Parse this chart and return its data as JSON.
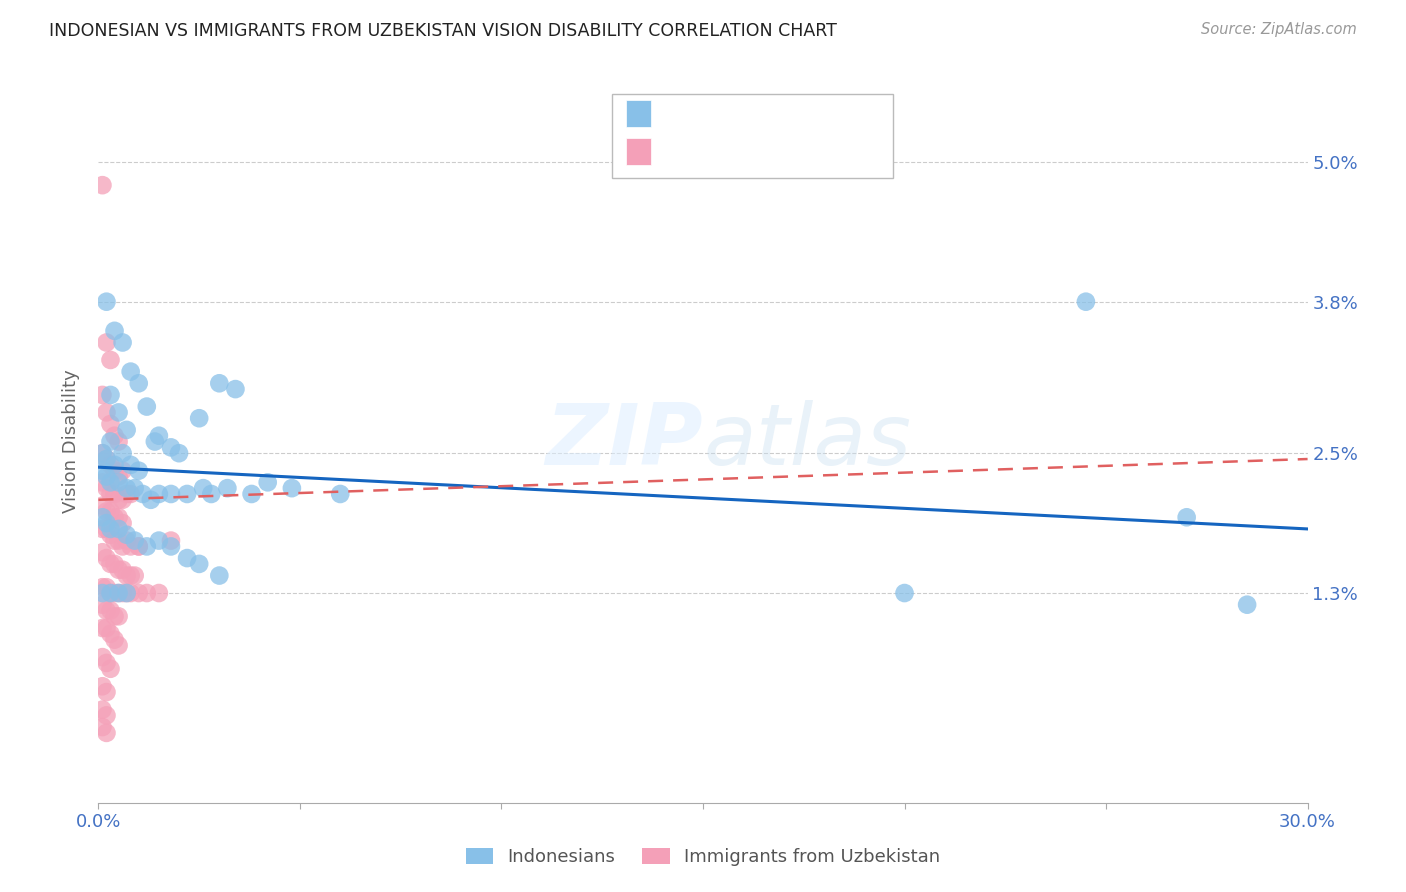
{
  "title": "INDONESIAN VS IMMIGRANTS FROM UZBEKISTAN VISION DISABILITY CORRELATION CHART",
  "source": "Source: ZipAtlas.com",
  "ylabel": "Vision Disability",
  "ytick_values": [
    0.013,
    0.025,
    0.038,
    0.05
  ],
  "ytick_labels": [
    "1.3%",
    "2.5%",
    "3.8%",
    "5.0%"
  ],
  "xmin": 0.0,
  "xmax": 0.3,
  "ymin": -0.005,
  "ymax": 0.057,
  "legend_label_blue": "Indonesians",
  "legend_label_pink": "Immigrants from Uzbekistan",
  "blue_color": "#88c0e8",
  "pink_color": "#f4a0b8",
  "line_blue_color": "#1565c0",
  "line_pink_color": "#e06060",
  "blue_line_x": [
    0.0,
    0.3
  ],
  "blue_line_y": [
    0.0238,
    0.0185
  ],
  "pink_line_x": [
    0.0,
    0.3
  ],
  "pink_line_y": [
    0.021,
    0.0245
  ],
  "grid_color": "#cccccc",
  "background_color": "#ffffff",
  "blue_scatter": [
    [
      0.002,
      0.038
    ],
    [
      0.004,
      0.0355
    ],
    [
      0.006,
      0.0345
    ],
    [
      0.008,
      0.032
    ],
    [
      0.003,
      0.03
    ],
    [
      0.005,
      0.0285
    ],
    [
      0.007,
      0.027
    ],
    [
      0.01,
      0.031
    ],
    [
      0.012,
      0.029
    ],
    [
      0.015,
      0.0265
    ],
    [
      0.003,
      0.026
    ],
    [
      0.006,
      0.025
    ],
    [
      0.001,
      0.025
    ],
    [
      0.002,
      0.0245
    ],
    [
      0.004,
      0.024
    ],
    [
      0.008,
      0.024
    ],
    [
      0.01,
      0.0235
    ],
    [
      0.014,
      0.026
    ],
    [
      0.018,
      0.0255
    ],
    [
      0.02,
      0.025
    ],
    [
      0.025,
      0.028
    ],
    [
      0.03,
      0.031
    ],
    [
      0.034,
      0.0305
    ],
    [
      0.001,
      0.0235
    ],
    [
      0.002,
      0.023
    ],
    [
      0.003,
      0.0225
    ],
    [
      0.005,
      0.0225
    ],
    [
      0.007,
      0.022
    ],
    [
      0.009,
      0.022
    ],
    [
      0.011,
      0.0215
    ],
    [
      0.013,
      0.021
    ],
    [
      0.015,
      0.0215
    ],
    [
      0.018,
      0.0215
    ],
    [
      0.022,
      0.0215
    ],
    [
      0.026,
      0.022
    ],
    [
      0.028,
      0.0215
    ],
    [
      0.032,
      0.022
    ],
    [
      0.038,
      0.0215
    ],
    [
      0.042,
      0.0225
    ],
    [
      0.048,
      0.022
    ],
    [
      0.06,
      0.0215
    ],
    [
      0.001,
      0.0195
    ],
    [
      0.002,
      0.019
    ],
    [
      0.003,
      0.0185
    ],
    [
      0.005,
      0.0185
    ],
    [
      0.007,
      0.018
    ],
    [
      0.009,
      0.0175
    ],
    [
      0.012,
      0.017
    ],
    [
      0.015,
      0.0175
    ],
    [
      0.018,
      0.017
    ],
    [
      0.022,
      0.016
    ],
    [
      0.025,
      0.0155
    ],
    [
      0.03,
      0.0145
    ],
    [
      0.001,
      0.013
    ],
    [
      0.003,
      0.013
    ],
    [
      0.005,
      0.013
    ],
    [
      0.007,
      0.013
    ],
    [
      0.2,
      0.013
    ],
    [
      0.245,
      0.038
    ],
    [
      0.27,
      0.0195
    ],
    [
      0.285,
      0.012
    ]
  ],
  "pink_scatter": [
    [
      0.001,
      0.048
    ],
    [
      0.002,
      0.0345
    ],
    [
      0.003,
      0.033
    ],
    [
      0.001,
      0.03
    ],
    [
      0.002,
      0.0285
    ],
    [
      0.003,
      0.0275
    ],
    [
      0.004,
      0.0265
    ],
    [
      0.005,
      0.026
    ],
    [
      0.001,
      0.025
    ],
    [
      0.002,
      0.0245
    ],
    [
      0.003,
      0.024
    ],
    [
      0.004,
      0.0235
    ],
    [
      0.005,
      0.023
    ],
    [
      0.006,
      0.0235
    ],
    [
      0.001,
      0.0225
    ],
    [
      0.002,
      0.022
    ],
    [
      0.003,
      0.0215
    ],
    [
      0.004,
      0.0215
    ],
    [
      0.005,
      0.021
    ],
    [
      0.006,
      0.021
    ],
    [
      0.007,
      0.0215
    ],
    [
      0.008,
      0.0215
    ],
    [
      0.001,
      0.0205
    ],
    [
      0.002,
      0.02
    ],
    [
      0.003,
      0.02
    ],
    [
      0.004,
      0.0195
    ],
    [
      0.005,
      0.0195
    ],
    [
      0.006,
      0.019
    ],
    [
      0.001,
      0.0185
    ],
    [
      0.002,
      0.0185
    ],
    [
      0.003,
      0.018
    ],
    [
      0.004,
      0.0175
    ],
    [
      0.005,
      0.0175
    ],
    [
      0.006,
      0.017
    ],
    [
      0.007,
      0.0175
    ],
    [
      0.008,
      0.017
    ],
    [
      0.01,
      0.017
    ],
    [
      0.001,
      0.0165
    ],
    [
      0.002,
      0.016
    ],
    [
      0.003,
      0.0155
    ],
    [
      0.004,
      0.0155
    ],
    [
      0.005,
      0.015
    ],
    [
      0.006,
      0.015
    ],
    [
      0.007,
      0.0145
    ],
    [
      0.008,
      0.0145
    ],
    [
      0.009,
      0.0145
    ],
    [
      0.001,
      0.0135
    ],
    [
      0.002,
      0.0135
    ],
    [
      0.003,
      0.013
    ],
    [
      0.004,
      0.013
    ],
    [
      0.005,
      0.013
    ],
    [
      0.006,
      0.013
    ],
    [
      0.007,
      0.013
    ],
    [
      0.008,
      0.013
    ],
    [
      0.01,
      0.013
    ],
    [
      0.012,
      0.013
    ],
    [
      0.015,
      0.013
    ],
    [
      0.001,
      0.012
    ],
    [
      0.002,
      0.0115
    ],
    [
      0.003,
      0.0115
    ],
    [
      0.004,
      0.011
    ],
    [
      0.005,
      0.011
    ],
    [
      0.001,
      0.01
    ],
    [
      0.002,
      0.01
    ],
    [
      0.003,
      0.0095
    ],
    [
      0.004,
      0.009
    ],
    [
      0.005,
      0.0085
    ],
    [
      0.001,
      0.0075
    ],
    [
      0.002,
      0.007
    ],
    [
      0.003,
      0.0065
    ],
    [
      0.001,
      0.005
    ],
    [
      0.002,
      0.0045
    ],
    [
      0.001,
      0.003
    ],
    [
      0.002,
      0.0025
    ],
    [
      0.001,
      0.0015
    ],
    [
      0.002,
      0.001
    ],
    [
      0.01,
      0.017
    ],
    [
      0.018,
      0.0175
    ]
  ]
}
